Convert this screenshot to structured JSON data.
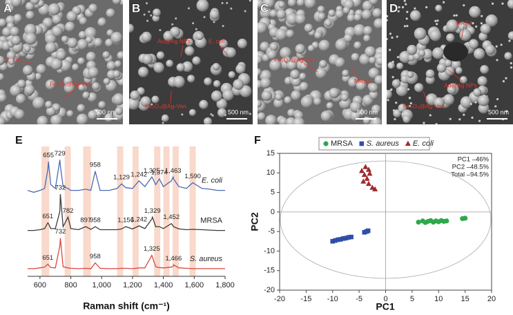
{
  "images": [
    {
      "label": "A",
      "annotations": [
        "E. coli",
        "Fe₃O₄@Ag-Van"
      ],
      "scale_bar": "500 nm"
    },
    {
      "label": "B",
      "annotations": [
        "Au@Ag NPs",
        "E. coli",
        "Fe₃O₄@Ag-Van"
      ],
      "scale_bar": "500 nm"
    },
    {
      "label": "C",
      "annotations": [
        "Fe₃O₄@Ag-Van",
        "MRSA"
      ],
      "scale_bar": "500 nm"
    },
    {
      "label": "D",
      "annotations": [
        "MRSA",
        "Au@Ag NPs",
        "Fe₃O₄@Ag-Van"
      ],
      "scale_bar": "500 nm"
    }
  ],
  "chart_data": [
    {
      "type": "line",
      "panel_label": "E",
      "x_label": "Raman shift (cm⁻¹)",
      "xlim": [
        520,
        1800
      ],
      "ylim": [
        0,
        3.4
      ],
      "xticks": [
        600,
        800,
        {
          "value": 1000,
          "label": "1,000"
        },
        {
          "value": 1200,
          "label": "1,200"
        },
        {
          "value": 1400,
          "label": "1,400"
        },
        {
          "value": 1600,
          "label": "1,600"
        },
        {
          "value": 1800,
          "label": "1,800"
        }
      ],
      "bands": [
        [
          610,
          660
        ],
        [
          760,
          800
        ],
        [
          880,
          930
        ],
        [
          1100,
          1140
        ],
        [
          1200,
          1240
        ],
        [
          1340,
          1380
        ],
        [
          1400,
          1440
        ],
        [
          1460,
          1500
        ],
        [
          1570,
          1610
        ]
      ],
      "band_color": "#f9d9cb",
      "x": [
        520,
        560,
        600,
        630,
        651,
        655,
        670,
        700,
        729,
        732,
        750,
        782,
        800,
        850,
        897,
        930,
        958,
        990,
        1050,
        1100,
        1129,
        1156,
        1200,
        1242,
        1280,
        1325,
        1329,
        1350,
        1374,
        1400,
        1452,
        1463,
        1466,
        1500,
        1550,
        1590,
        1650,
        1700,
        1750,
        1800
      ],
      "series": [
        {
          "name": "E. coli",
          "italic": true,
          "color": "#4a6ab3",
          "values": [
            2.25,
            2.2,
            2.25,
            2.3,
            2.8,
            3.0,
            2.4,
            2.3,
            3.05,
            2.9,
            2.35,
            2.3,
            2.25,
            2.25,
            2.28,
            2.25,
            2.75,
            2.25,
            2.25,
            2.3,
            2.42,
            2.32,
            2.3,
            2.5,
            2.35,
            2.6,
            2.58,
            2.4,
            2.55,
            2.35,
            2.5,
            2.6,
            2.55,
            2.35,
            2.3,
            2.45,
            2.3,
            2.28,
            2.25,
            2.25
          ],
          "peak_labels": [
            655,
            729,
            958,
            {
              "value": 1129,
              "label": "1,129"
            },
            {
              "value": 1242,
              "label": "1,242"
            },
            {
              "value": 1325,
              "label": "1,325"
            },
            {
              "value": 1374,
              "label": "1,374"
            },
            {
              "value": 1463,
              "label": "1,463"
            },
            {
              "value": 1590,
              "label": "1,590"
            }
          ]
        },
        {
          "name": "MRSA",
          "italic": false,
          "color": "#3a3a3a",
          "values": [
            1.2,
            1.2,
            1.22,
            1.25,
            1.4,
            1.38,
            1.25,
            1.25,
            1.7,
            2.15,
            1.3,
            1.55,
            1.25,
            1.22,
            1.3,
            1.23,
            1.3,
            1.22,
            1.22,
            1.22,
            1.24,
            1.3,
            1.24,
            1.32,
            1.25,
            1.5,
            1.55,
            1.3,
            1.3,
            1.25,
            1.38,
            1.32,
            1.3,
            1.24,
            1.22,
            1.23,
            1.22,
            1.21,
            1.2,
            1.2
          ],
          "peak_labels": [
            651,
            732,
            782,
            897,
            958,
            {
              "value": 1156,
              "label": "1,156"
            },
            {
              "value": 1242,
              "label": "1,242"
            },
            {
              "value": 1329,
              "label": "1,329"
            },
            {
              "value": 1452,
              "label": "1,452"
            }
          ]
        },
        {
          "name": "S. aureus",
          "italic": true,
          "color": "#d9473f",
          "values": [
            0.2,
            0.2,
            0.22,
            0.24,
            0.32,
            0.3,
            0.23,
            0.22,
            0.8,
            1.0,
            0.25,
            0.22,
            0.21,
            0.2,
            0.21,
            0.2,
            0.35,
            0.21,
            0.2,
            0.2,
            0.21,
            0.21,
            0.2,
            0.22,
            0.22,
            0.55,
            0.5,
            0.25,
            0.23,
            0.22,
            0.24,
            0.26,
            0.3,
            0.22,
            0.21,
            0.2,
            0.2,
            0.2,
            0.2,
            0.2
          ],
          "peak_labels": [
            651,
            732,
            958,
            {
              "value": 1325,
              "label": "1,325"
            },
            {
              "value": 1466,
              "label": "1,466"
            }
          ]
        }
      ]
    },
    {
      "type": "scatter",
      "panel_label": "F",
      "x_label": "PC1",
      "y_label": "PC2",
      "xlim": [
        -20,
        20
      ],
      "ylim": [
        -20,
        15
      ],
      "xticks": [
        -20,
        -15,
        -10,
        -5,
        0,
        5,
        10,
        15,
        20
      ],
      "yticks": [
        -20,
        -15,
        -10,
        -5,
        0,
        5,
        10,
        15
      ],
      "annotations": [
        "PC1 –46%",
        "PC2 –48.5%",
        "Total –94.5%"
      ],
      "series": [
        {
          "name": "MRSA",
          "italic": false,
          "marker": "circle",
          "color": "#2ea84a",
          "x": [
            6.2,
            7,
            7.5,
            8,
            8.5,
            9,
            9.5,
            10,
            10.5,
            11,
            11.5,
            14.5,
            15
          ],
          "values": [
            -2.6,
            -2.3,
            -2.7,
            -2.4,
            -2.2,
            -2.6,
            -2.3,
            -2.5,
            -2.2,
            -2.4,
            -2.3,
            -1.7,
            -1.6
          ]
        },
        {
          "name": "S. aureus",
          "italic": true,
          "marker": "square",
          "color": "#2f4ea8",
          "x": [
            -10,
            -9.5,
            -9,
            -8.5,
            -8,
            -7.5,
            -7,
            -6.5,
            -4,
            -3.6,
            -3.3
          ],
          "values": [
            -7.5,
            -7.3,
            -7.1,
            -7,
            -6.8,
            -6.7,
            -6.5,
            -6.4,
            -5.2,
            -5,
            -4.8
          ]
        },
        {
          "name": "E. coli",
          "italic": true,
          "marker": "triangle",
          "color": "#9e2a2f",
          "x": [
            -4.5,
            -3.8,
            -3.2,
            -4,
            -3.5,
            -4.2,
            -3.2,
            -2.5,
            -2,
            -3
          ],
          "values": [
            10.5,
            11.5,
            10.8,
            9.5,
            8.5,
            7.8,
            7.2,
            6.2,
            5.8,
            9.8
          ]
        }
      ]
    }
  ]
}
